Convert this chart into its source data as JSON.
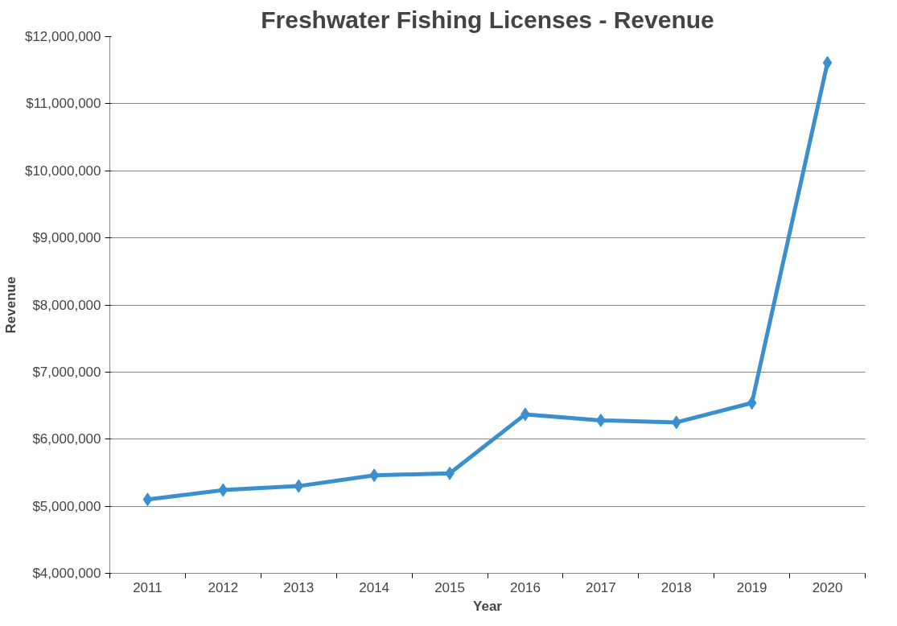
{
  "chart_data": {
    "type": "line",
    "title": "Freshwater Fishing Licenses - Revenue",
    "xlabel": "Year",
    "ylabel": "Revenue",
    "categories": [
      "2011",
      "2012",
      "2013",
      "2014",
      "2015",
      "2016",
      "2017",
      "2018",
      "2019",
      "2020"
    ],
    "series": [
      {
        "color": "#3a8fd0",
        "values": [
          5100000,
          5240000,
          5300000,
          5460000,
          5490000,
          6370000,
          6280000,
          6250000,
          6540000,
          11610000
        ]
      }
    ],
    "ylim": [
      4000000,
      12000000
    ],
    "yticks": [
      {
        "value": 4000000,
        "label": "$4,000,000"
      },
      {
        "value": 5000000,
        "label": "$5,000,000"
      },
      {
        "value": 6000000,
        "label": "$6,000,000"
      },
      {
        "value": 7000000,
        "label": "$7,000,000"
      },
      {
        "value": 8000000,
        "label": "$8,000,000"
      },
      {
        "value": 9000000,
        "label": "$9,000,000"
      },
      {
        "value": 10000000,
        "label": "$10,000,000"
      },
      {
        "value": 11000000,
        "label": "$11,000,000"
      },
      {
        "value": 12000000,
        "label": "$12,000,000"
      }
    ],
    "grid": "y",
    "marker": "diamond",
    "line_style": "solid"
  }
}
